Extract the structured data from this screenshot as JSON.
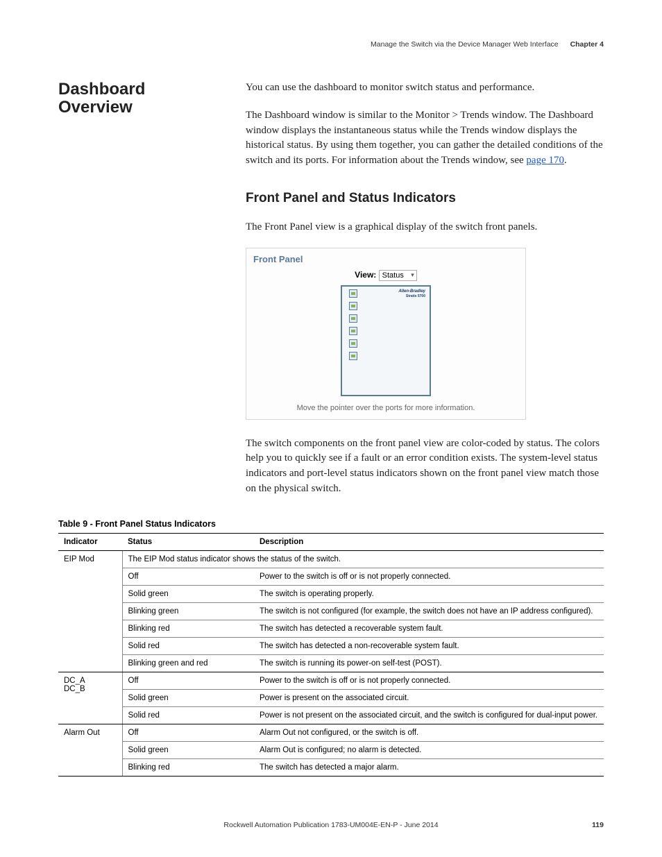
{
  "header": {
    "breadcrumb": "Manage the Switch via the Device Manager Web Interface",
    "chapter": "Chapter 4"
  },
  "section_title": "Dashboard Overview",
  "intro": "You can use the dashboard to monitor switch status and performance.",
  "para2_a": "The Dashboard window is similar to the Monitor > Trends window. The Dashboard window displays the instantaneous status while the Trends window displays the historical status. By using them together, you can gather the detailed conditions of the switch and its ports. For information about the Trends window, see ",
  "para2_link": "page 170",
  "para2_b": ".",
  "h2": "Front Panel and Status Indicators",
  "h2_intro": "The Front Panel view is a graphical display of the switch front panels.",
  "panel": {
    "title": "Front Panel",
    "view_label": "View:",
    "view_value": "Status",
    "brand": "Allen-Bradley",
    "model": "Stratix 5700",
    "hint": "Move the pointer over the ports for more information."
  },
  "after_panel": "The switch components on the front panel view are color-coded by status. The colors help you to quickly see if a fault or an error condition exists. The system-level status indicators and port-level status indicators shown on the front panel view match those on the physical switch.",
  "table_title": "Table 9 - Front Panel Status Indicators",
  "table": {
    "columns": [
      "Indicator",
      "Status",
      "Description"
    ],
    "groups": [
      {
        "indicator": "EIP Mod",
        "span_text": "The EIP Mod status indicator shows the status of the switch.",
        "rows": [
          [
            "Off",
            "Power to the switch is off or is not properly connected."
          ],
          [
            "Solid green",
            "The switch is operating properly."
          ],
          [
            "Blinking green",
            "The switch is not configured (for example, the switch does not have an IP address configured)."
          ],
          [
            "Blinking red",
            "The switch has detected a recoverable system fault."
          ],
          [
            "Solid red",
            "The switch has detected a non-recoverable system fault."
          ],
          [
            "Blinking green and red",
            "The switch is running its power-on self-test (POST)."
          ]
        ]
      },
      {
        "indicator": "DC_A\nDC_B",
        "rows": [
          [
            "Off",
            "Power to the switch is off or is not properly connected."
          ],
          [
            "Solid green",
            "Power is present on the associated circuit."
          ],
          [
            "Solid red",
            "Power is not present on the associated circuit, and the switch is configured for dual-input power."
          ]
        ]
      },
      {
        "indicator": "Alarm Out",
        "rows": [
          [
            "Off",
            "Alarm Out not configured, or the switch is off."
          ],
          [
            "Solid green",
            "Alarm Out is configured; no alarm is detected."
          ],
          [
            "Blinking red",
            "The switch has detected a major alarm."
          ]
        ]
      }
    ]
  },
  "footer": {
    "pub": "Rockwell Automation Publication 1783-UM004E-EN-P - June 2014",
    "page": "119"
  }
}
